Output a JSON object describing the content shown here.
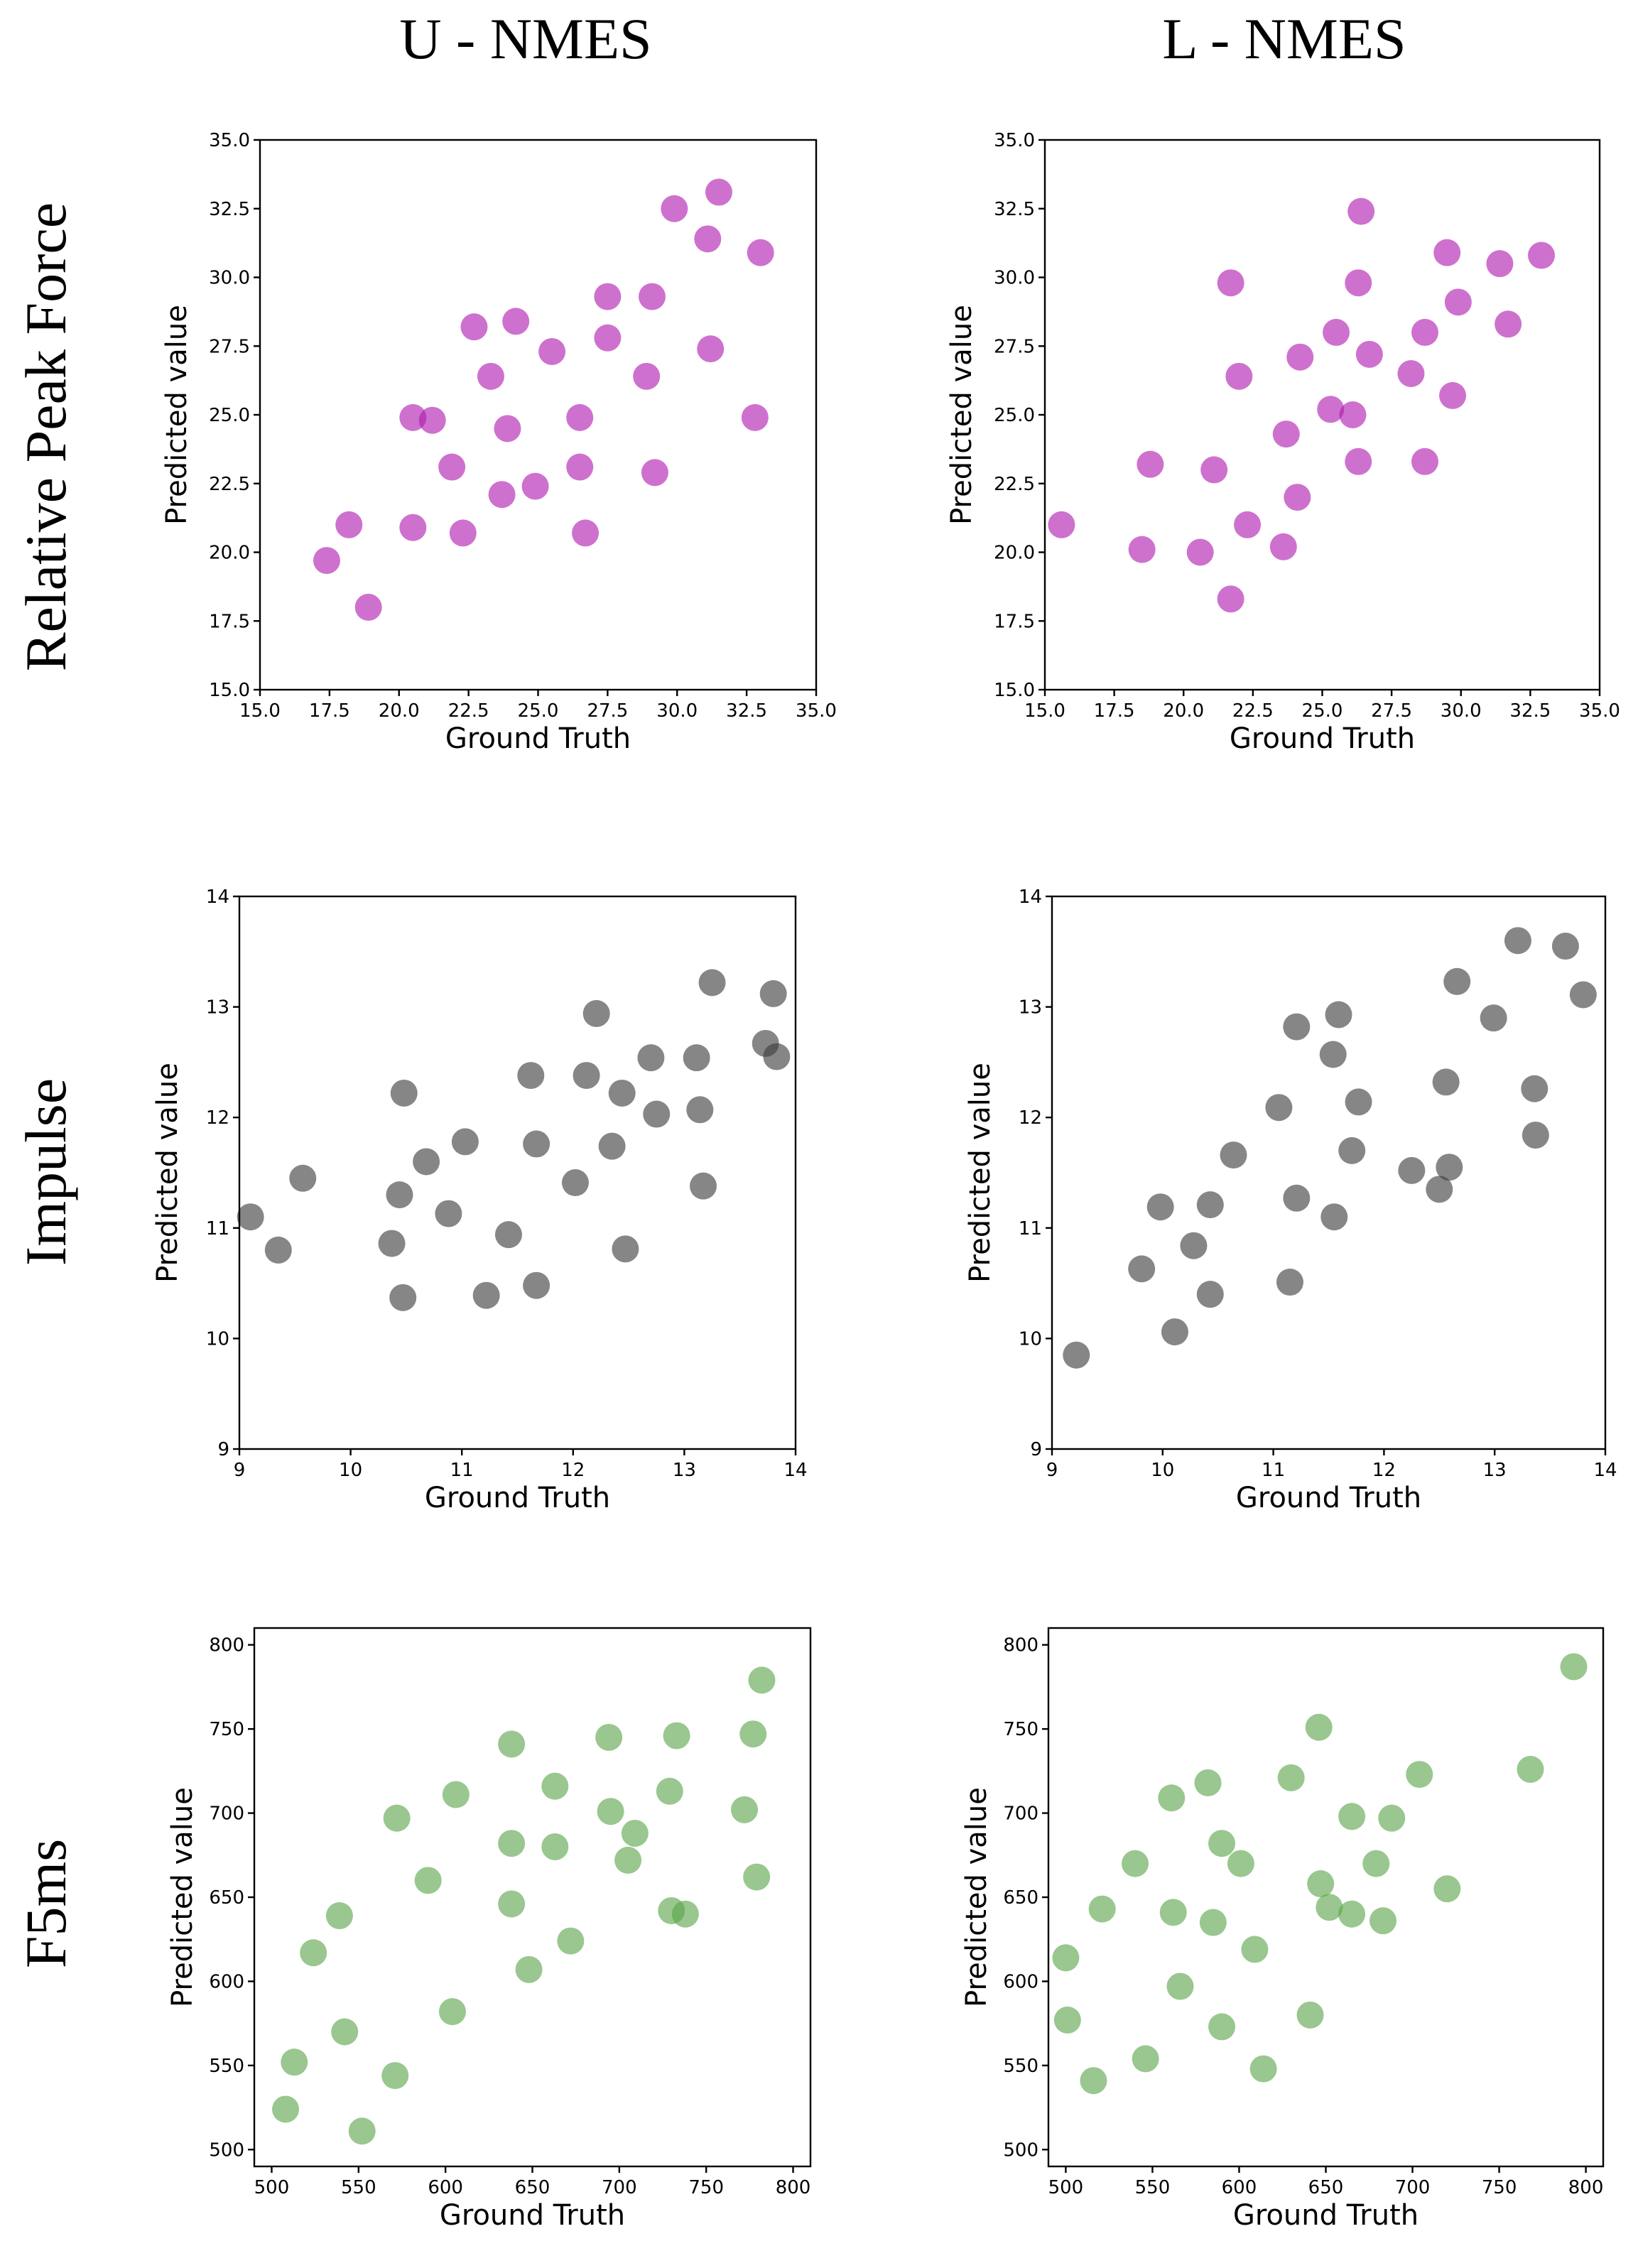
{
  "column_titles": [
    "U - NMES",
    "L - NMES"
  ],
  "row_titles": [
    "Relative Peak Force",
    "Impulse",
    "F5ms"
  ],
  "chart_data": [
    {
      "type": "scatter",
      "id": "rpf-u",
      "xlabel": "Ground Truth",
      "ylabel": "Predicted value",
      "color": "#b01ab0",
      "xlim": [
        15.0,
        35.0
      ],
      "ylim": [
        15.0,
        35.0
      ],
      "xticks": [
        15.0,
        17.5,
        20.0,
        22.5,
        25.0,
        27.5,
        30.0,
        32.5,
        35.0
      ],
      "yticks": [
        15.0,
        17.5,
        20.0,
        22.5,
        25.0,
        27.5,
        30.0,
        32.5,
        35.0
      ],
      "tick_format": "1",
      "points": [
        [
          17.4,
          19.7
        ],
        [
          18.2,
          21.0
        ],
        [
          18.9,
          18.0
        ],
        [
          20.5,
          24.9
        ],
        [
          21.2,
          24.8
        ],
        [
          20.5,
          20.9
        ],
        [
          21.9,
          23.1
        ],
        [
          22.3,
          20.7
        ],
        [
          22.7,
          28.2
        ],
        [
          23.3,
          26.4
        ],
        [
          23.7,
          22.1
        ],
        [
          23.9,
          24.5
        ],
        [
          24.2,
          28.4
        ],
        [
          24.9,
          22.4
        ],
        [
          25.5,
          27.3
        ],
        [
          26.5,
          24.9
        ],
        [
          26.5,
          23.1
        ],
        [
          26.7,
          20.7
        ],
        [
          27.5,
          29.3
        ],
        [
          27.5,
          27.8
        ],
        [
          28.9,
          26.4
        ],
        [
          29.1,
          29.3
        ],
        [
          29.2,
          22.9
        ],
        [
          29.9,
          32.5
        ],
        [
          31.1,
          31.4
        ],
        [
          31.5,
          33.1
        ],
        [
          31.2,
          27.4
        ],
        [
          32.8,
          24.9
        ],
        [
          33.0,
          30.9
        ]
      ]
    },
    {
      "type": "scatter",
      "id": "rpf-l",
      "xlabel": "Ground Truth",
      "ylabel": "Predicted value",
      "color": "#b01ab0",
      "xlim": [
        15.0,
        35.0
      ],
      "ylim": [
        15.0,
        35.0
      ],
      "xticks": [
        15.0,
        17.5,
        20.0,
        22.5,
        25.0,
        27.5,
        30.0,
        32.5,
        35.0
      ],
      "yticks": [
        15.0,
        17.5,
        20.0,
        22.5,
        25.0,
        27.5,
        30.0,
        32.5,
        35.0
      ],
      "tick_format": "1",
      "points": [
        [
          15.6,
          21.0
        ],
        [
          18.5,
          20.1
        ],
        [
          18.8,
          23.2
        ],
        [
          20.6,
          20.0
        ],
        [
          21.1,
          23.0
        ],
        [
          21.7,
          29.8
        ],
        [
          21.7,
          18.3
        ],
        [
          22.0,
          26.4
        ],
        [
          22.3,
          21.0
        ],
        [
          23.6,
          20.2
        ],
        [
          23.7,
          24.3
        ],
        [
          24.1,
          22.0
        ],
        [
          24.2,
          27.1
        ],
        [
          25.3,
          25.2
        ],
        [
          25.5,
          28.0
        ],
        [
          26.1,
          25.0
        ],
        [
          26.3,
          29.8
        ],
        [
          26.4,
          32.4
        ],
        [
          26.3,
          23.3
        ],
        [
          26.7,
          27.2
        ],
        [
          28.2,
          26.5
        ],
        [
          28.7,
          28.0
        ],
        [
          28.7,
          23.3
        ],
        [
          29.5,
          30.9
        ],
        [
          29.7,
          25.7
        ],
        [
          29.9,
          29.1
        ],
        [
          31.4,
          30.5
        ],
        [
          31.7,
          28.3
        ],
        [
          32.9,
          30.8
        ]
      ]
    },
    {
      "type": "scatter",
      "id": "imp-u",
      "xlabel": "Ground Truth",
      "ylabel": "Predicted value",
      "color": "#3c3c3c",
      "xlim": [
        9,
        14
      ],
      "ylim": [
        9,
        14
      ],
      "xticks": [
        9,
        10,
        11,
        12,
        13,
        14
      ],
      "yticks": [
        9,
        10,
        11,
        12,
        13,
        14
      ],
      "tick_format": "0",
      "points": [
        [
          9.1,
          11.1
        ],
        [
          9.35,
          10.8
        ],
        [
          9.57,
          11.45
        ],
        [
          10.37,
          10.86
        ],
        [
          10.44,
          11.3
        ],
        [
          10.48,
          12.22
        ],
        [
          10.47,
          10.37
        ],
        [
          10.68,
          11.6
        ],
        [
          10.88,
          11.13
        ],
        [
          11.03,
          11.78
        ],
        [
          11.22,
          10.39
        ],
        [
          11.42,
          10.94
        ],
        [
          11.62,
          12.38
        ],
        [
          11.67,
          11.76
        ],
        [
          11.67,
          10.48
        ],
        [
          12.02,
          11.41
        ],
        [
          12.12,
          12.38
        ],
        [
          12.21,
          12.94
        ],
        [
          12.35,
          11.74
        ],
        [
          12.44,
          12.22
        ],
        [
          12.47,
          10.81
        ],
        [
          12.7,
          12.54
        ],
        [
          12.75,
          12.03
        ],
        [
          13.11,
          12.54
        ],
        [
          13.14,
          12.07
        ],
        [
          13.17,
          11.38
        ],
        [
          13.25,
          13.22
        ],
        [
          13.73,
          12.67
        ],
        [
          13.8,
          13.12
        ],
        [
          13.83,
          12.55
        ]
      ]
    },
    {
      "type": "scatter",
      "id": "imp-l",
      "xlabel": "Ground Truth",
      "ylabel": "Predicted value",
      "color": "#3c3c3c",
      "xlim": [
        9,
        14
      ],
      "ylim": [
        9,
        14
      ],
      "xticks": [
        9,
        10,
        11,
        12,
        13,
        14
      ],
      "yticks": [
        9,
        10,
        11,
        12,
        13,
        14
      ],
      "tick_format": "0",
      "points": [
        [
          9.22,
          9.85
        ],
        [
          9.81,
          10.63
        ],
        [
          9.98,
          11.19
        ],
        [
          10.11,
          10.06
        ],
        [
          10.28,
          10.84
        ],
        [
          10.43,
          11.21
        ],
        [
          10.43,
          10.4
        ],
        [
          10.64,
          11.66
        ],
        [
          11.05,
          12.09
        ],
        [
          11.15,
          10.51
        ],
        [
          11.21,
          12.82
        ],
        [
          11.21,
          11.27
        ],
        [
          11.54,
          12.57
        ],
        [
          11.55,
          11.1
        ],
        [
          11.59,
          12.93
        ],
        [
          11.71,
          11.7
        ],
        [
          11.77,
          12.14
        ],
        [
          12.25,
          11.52
        ],
        [
          12.5,
          11.35
        ],
        [
          12.56,
          12.32
        ],
        [
          12.59,
          11.55
        ],
        [
          12.66,
          13.23
        ],
        [
          12.99,
          12.9
        ],
        [
          13.21,
          13.6
        ],
        [
          13.36,
          12.26
        ],
        [
          13.37,
          11.84
        ],
        [
          13.64,
          13.55
        ],
        [
          13.8,
          13.11
        ]
      ]
    },
    {
      "type": "scatter",
      "id": "f5-u",
      "xlabel": "Ground Truth",
      "ylabel": "Predicted value",
      "color": "#5aa54a",
      "xlim": [
        490,
        810
      ],
      "ylim": [
        490,
        810
      ],
      "xticks": [
        500,
        550,
        600,
        650,
        700,
        750,
        800
      ],
      "yticks": [
        500,
        550,
        600,
        650,
        700,
        750,
        800
      ],
      "tick_format": "0",
      "points": [
        [
          508,
          524
        ],
        [
          513,
          552
        ],
        [
          524,
          617
        ],
        [
          539,
          639
        ],
        [
          542,
          570
        ],
        [
          552,
          511
        ],
        [
          571,
          544
        ],
        [
          572,
          697
        ],
        [
          590,
          660
        ],
        [
          604,
          582
        ],
        [
          606,
          711
        ],
        [
          638,
          741
        ],
        [
          638,
          682
        ],
        [
          638,
          646
        ],
        [
          648,
          607
        ],
        [
          663,
          716
        ],
        [
          663,
          680
        ],
        [
          672,
          624
        ],
        [
          694,
          745
        ],
        [
          695,
          701
        ],
        [
          705,
          672
        ],
        [
          709,
          688
        ],
        [
          729,
          713
        ],
        [
          730,
          642
        ],
        [
          733,
          746
        ],
        [
          738,
          640
        ],
        [
          772,
          702
        ],
        [
          777,
          747
        ],
        [
          779,
          662
        ],
        [
          782,
          779
        ]
      ]
    },
    {
      "type": "scatter",
      "id": "f5-l",
      "xlabel": "Ground Truth",
      "ylabel": "Predicted value",
      "color": "#5aa54a",
      "xlim": [
        490,
        810
      ],
      "ylim": [
        490,
        810
      ],
      "xticks": [
        500,
        550,
        600,
        650,
        700,
        750,
        800
      ],
      "yticks": [
        500,
        550,
        600,
        650,
        700,
        750,
        800
      ],
      "tick_format": "0",
      "points": [
        [
          500,
          614
        ],
        [
          501,
          577
        ],
        [
          516,
          541
        ],
        [
          521,
          643
        ],
        [
          540,
          670
        ],
        [
          546,
          554
        ],
        [
          561,
          709
        ],
        [
          562,
          641
        ],
        [
          566,
          597
        ],
        [
          582,
          718
        ],
        [
          585,
          635
        ],
        [
          590,
          682
        ],
        [
          590,
          573
        ],
        [
          601,
          670
        ],
        [
          609,
          619
        ],
        [
          614,
          548
        ],
        [
          630,
          721
        ],
        [
          641,
          580
        ],
        [
          646,
          751
        ],
        [
          647,
          658
        ],
        [
          652,
          644
        ],
        [
          665,
          698
        ],
        [
          665,
          640
        ],
        [
          679,
          670
        ],
        [
          683,
          636
        ],
        [
          688,
          697
        ],
        [
          704,
          723
        ],
        [
          720,
          655
        ],
        [
          768,
          726
        ],
        [
          793,
          787
        ]
      ]
    }
  ]
}
